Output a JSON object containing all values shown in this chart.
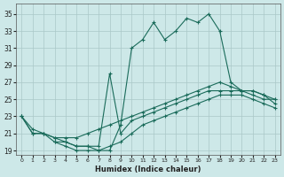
{
  "xlabel": "Humidex (Indice chaleur)",
  "xlim": [
    -0.5,
    23.5
  ],
  "ylim": [
    18.5,
    36.2
  ],
  "yticks": [
    19,
    21,
    23,
    25,
    27,
    29,
    31,
    33,
    35
  ],
  "xticks": [
    0,
    1,
    2,
    3,
    4,
    5,
    6,
    7,
    8,
    9,
    10,
    11,
    12,
    13,
    14,
    15,
    16,
    17,
    18,
    19,
    20,
    21,
    22,
    23
  ],
  "bg_color": "#cde8e8",
  "grid_color": "#aac8c8",
  "line_color": "#1a6b5a",
  "series_big_x": [
    0,
    1,
    2,
    3,
    4,
    5,
    6,
    7,
    8,
    9,
    10,
    11,
    12,
    13,
    14,
    15,
    16,
    17,
    18,
    19,
    20,
    21,
    22,
    23
  ],
  "series_big_y": [
    23,
    21,
    21,
    20.5,
    20,
    19.5,
    19.5,
    19,
    19,
    22,
    31,
    32,
    34,
    32,
    33,
    34.5,
    34,
    35,
    33,
    27,
    26,
    25.5,
    25,
    25
  ],
  "series_spike_x": [
    3,
    4,
    5,
    6,
    7,
    8,
    9,
    10,
    11,
    12,
    13,
    14,
    15,
    16,
    17,
    18,
    19,
    20,
    21,
    22,
    23
  ],
  "series_spike_y": [
    20,
    20,
    19.5,
    19.5,
    19.5,
    28,
    21,
    22.5,
    23,
    23.5,
    24,
    24.5,
    25,
    25.5,
    26,
    26,
    26,
    26,
    26,
    25.5,
    24.5
  ],
  "series_mid_x": [
    0,
    1,
    2,
    3,
    4,
    5,
    6,
    7,
    8,
    9,
    10,
    11,
    12,
    13,
    14,
    15,
    16,
    17,
    18,
    19,
    20,
    21,
    22,
    23
  ],
  "series_mid_y": [
    23,
    21.5,
    21,
    20.5,
    20.5,
    20.5,
    21,
    21.5,
    22,
    22.5,
    23,
    23.5,
    24,
    24.5,
    25,
    25.5,
    26,
    26.5,
    27,
    26.5,
    26,
    26,
    25.5,
    25
  ],
  "series_low_x": [
    0,
    1,
    2,
    3,
    4,
    5,
    6,
    7,
    8,
    9,
    10,
    11,
    12,
    13,
    14,
    15,
    16,
    17,
    18,
    19,
    20,
    21,
    22,
    23
  ],
  "series_low_y": [
    23,
    21,
    21,
    20,
    19.5,
    19,
    19,
    19,
    19.5,
    20,
    21,
    22,
    22.5,
    23,
    23.5,
    24,
    24.5,
    25,
    25.5,
    25.5,
    25.5,
    25,
    24.5,
    24
  ]
}
